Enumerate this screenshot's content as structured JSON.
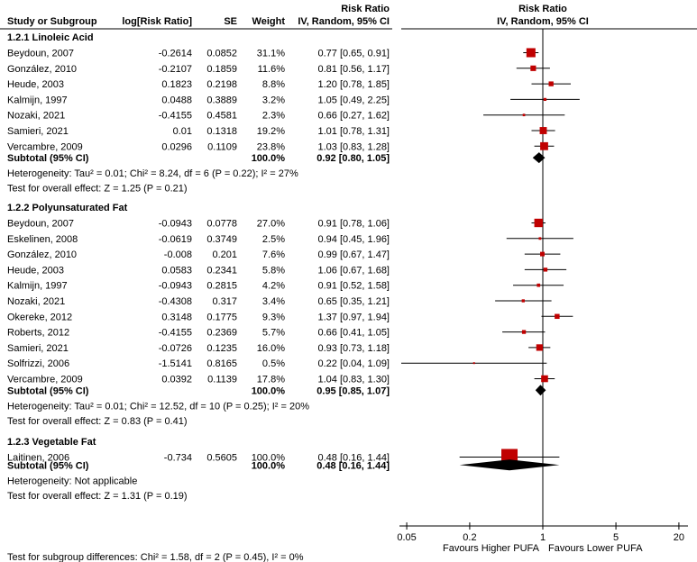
{
  "chart_data": {
    "type": "forest",
    "headers": {
      "study": "Study or Subgroup",
      "logrr": "log[Risk Ratio]",
      "se": "SE",
      "weight": "Weight",
      "rr_title": "Risk Ratio",
      "rr_method": "IV, Random, 95% CI",
      "plot_title": "Risk Ratio",
      "plot_method": "IV, Random, 95% CI"
    },
    "x_scale": "log",
    "xlim": [
      0.05,
      20
    ],
    "x_ticks": [
      "0.05",
      "0.2",
      "1",
      "5",
      "20"
    ],
    "x_tick_values": [
      0.05,
      0.2,
      1,
      5,
      20
    ],
    "favours_left": "Favours Higher PUFA",
    "favours_right": "Favours Lower PUFA",
    "colors": {
      "square": "#c00000",
      "diamond": "#000000"
    },
    "subgroups": [
      {
        "title": "1.2.1 Linoleic Acid",
        "studies": [
          {
            "name": "Beydoun, 2007",
            "logrr": "-0.2614",
            "se": "0.0852",
            "weight": "31.1%",
            "ci": "0.77 [0.65, 0.91]",
            "rr": 0.77,
            "lo": 0.65,
            "hi": 0.91,
            "w": 31.1
          },
          {
            "name": "González, 2010",
            "logrr": "-0.2107",
            "se": "0.1859",
            "weight": "11.6%",
            "ci": "0.81 [0.56, 1.17]",
            "rr": 0.81,
            "lo": 0.56,
            "hi": 1.17,
            "w": 11.6
          },
          {
            "name": "Heude, 2003",
            "logrr": "0.1823",
            "se": "0.2198",
            "weight": "8.8%",
            "ci": "1.20 [0.78, 1.85]",
            "rr": 1.2,
            "lo": 0.78,
            "hi": 1.85,
            "w": 8.8
          },
          {
            "name": "Kalmijn, 1997",
            "logrr": "0.0488",
            "se": "0.3889",
            "weight": "3.2%",
            "ci": "1.05 [0.49, 2.25]",
            "rr": 1.05,
            "lo": 0.49,
            "hi": 2.25,
            "w": 3.2
          },
          {
            "name": "Nozaki, 2021",
            "logrr": "-0.4155",
            "se": "0.4581",
            "weight": "2.3%",
            "ci": "0.66 [0.27, 1.62]",
            "rr": 0.66,
            "lo": 0.27,
            "hi": 1.62,
            "w": 2.3
          },
          {
            "name": "Samieri, 2021",
            "logrr": "0.01",
            "se": "0.1318",
            "weight": "19.2%",
            "ci": "1.01 [0.78, 1.31]",
            "rr": 1.01,
            "lo": 0.78,
            "hi": 1.31,
            "w": 19.2
          },
          {
            "name": "Vercambre, 2009",
            "logrr": "0.0296",
            "se": "0.1109",
            "weight": "23.8%",
            "ci": "1.03 [0.83, 1.28]",
            "rr": 1.03,
            "lo": 0.83,
            "hi": 1.28,
            "w": 23.8
          }
        ],
        "subtotal": {
          "label": "Subtotal (95% CI)",
          "weight": "100.0%",
          "ci": "0.92 [0.80, 1.05]",
          "rr": 0.92,
          "lo": 0.8,
          "hi": 1.05
        },
        "heterogeneity": "Heterogeneity: Tau² = 0.01; Chi² = 8.24, df = 6 (P = 0.22); I² = 27%",
        "overall": "Test for overall effect: Z = 1.25 (P = 0.21)"
      },
      {
        "title": "1.2.2 Polyunsaturated Fat",
        "studies": [
          {
            "name": "Beydoun, 2007",
            "logrr": "-0.0943",
            "se": "0.0778",
            "weight": "27.0%",
            "ci": "0.91 [0.78, 1.06]",
            "rr": 0.91,
            "lo": 0.78,
            "hi": 1.06,
            "w": 27.0
          },
          {
            "name": "Eskelinen, 2008",
            "logrr": "-0.0619",
            "se": "0.3749",
            "weight": "2.5%",
            "ci": "0.94 [0.45, 1.96]",
            "rr": 0.94,
            "lo": 0.45,
            "hi": 1.96,
            "w": 2.5
          },
          {
            "name": "González, 2010",
            "logrr": "-0.008",
            "se": "0.201",
            "weight": "7.6%",
            "ci": "0.99 [0.67, 1.47]",
            "rr": 0.99,
            "lo": 0.67,
            "hi": 1.47,
            "w": 7.6
          },
          {
            "name": "Heude, 2003",
            "logrr": "0.0583",
            "se": "0.2341",
            "weight": "5.8%",
            "ci": "1.06 [0.67, 1.68]",
            "rr": 1.06,
            "lo": 0.67,
            "hi": 1.68,
            "w": 5.8
          },
          {
            "name": "Kalmijn, 1997",
            "logrr": "-0.0943",
            "se": "0.2815",
            "weight": "4.2%",
            "ci": "0.91 [0.52, 1.58]",
            "rr": 0.91,
            "lo": 0.52,
            "hi": 1.58,
            "w": 4.2
          },
          {
            "name": "Nozaki, 2021",
            "logrr": "-0.4308",
            "se": "0.317",
            "weight": "3.4%",
            "ci": "0.65 [0.35, 1.21]",
            "rr": 0.65,
            "lo": 0.35,
            "hi": 1.21,
            "w": 3.4
          },
          {
            "name": "Okereke, 2012",
            "logrr": "0.3148",
            "se": "0.1775",
            "weight": "9.3%",
            "ci": "1.37 [0.97, 1.94]",
            "rr": 1.37,
            "lo": 0.97,
            "hi": 1.94,
            "w": 9.3
          },
          {
            "name": "Roberts, 2012",
            "logrr": "-0.4155",
            "se": "0.2369",
            "weight": "5.7%",
            "ci": "0.66 [0.41, 1.05]",
            "rr": 0.66,
            "lo": 0.41,
            "hi": 1.05,
            "w": 5.7
          },
          {
            "name": "Samieri, 2021",
            "logrr": "-0.0726",
            "se": "0.1235",
            "weight": "16.0%",
            "ci": "0.93 [0.73, 1.18]",
            "rr": 0.93,
            "lo": 0.73,
            "hi": 1.18,
            "w": 16.0
          },
          {
            "name": "Solfrizzi, 2006",
            "logrr": "-1.5141",
            "se": "0.8165",
            "weight": "0.5%",
            "ci": "0.22 [0.04, 1.09]",
            "rr": 0.22,
            "lo": 0.04,
            "hi": 1.09,
            "w": 0.5
          },
          {
            "name": "Vercambre, 2009",
            "logrr": "0.0392",
            "se": "0.1139",
            "weight": "17.8%",
            "ci": "1.04 [0.83, 1.30]",
            "rr": 1.04,
            "lo": 0.83,
            "hi": 1.3,
            "w": 17.8
          }
        ],
        "subtotal": {
          "label": "Subtotal (95% CI)",
          "weight": "100.0%",
          "ci": "0.95 [0.85, 1.07]",
          "rr": 0.95,
          "lo": 0.85,
          "hi": 1.07
        },
        "heterogeneity": "Heterogeneity: Tau² = 0.01; Chi² = 12.52, df = 10 (P = 0.25); I² = 20%",
        "overall": "Test for overall effect: Z = 0.83 (P = 0.41)"
      },
      {
        "title": "1.2.3 Vegetable Fat",
        "studies": [
          {
            "name": "Laitinen, 2006",
            "logrr": "-0.734",
            "se": "0.5605",
            "weight": "100.0%",
            "ci": "0.48 [0.16, 1.44]",
            "rr": 0.48,
            "lo": 0.16,
            "hi": 1.44,
            "w": 100.0
          }
        ],
        "subtotal": {
          "label": "Subtotal (95% CI)",
          "weight": "100.0%",
          "ci": "0.48 [0.16, 1.44]",
          "rr": 0.48,
          "lo": 0.16,
          "hi": 1.44
        },
        "heterogeneity": "Heterogeneity: Not applicable",
        "overall": "Test for overall effect: Z = 1.31 (P = 0.19)"
      }
    ],
    "subgroup_differences": "Test for subgroup differences: Chi² = 1.58, df = 2 (P = 0.45), I² = 0%"
  }
}
